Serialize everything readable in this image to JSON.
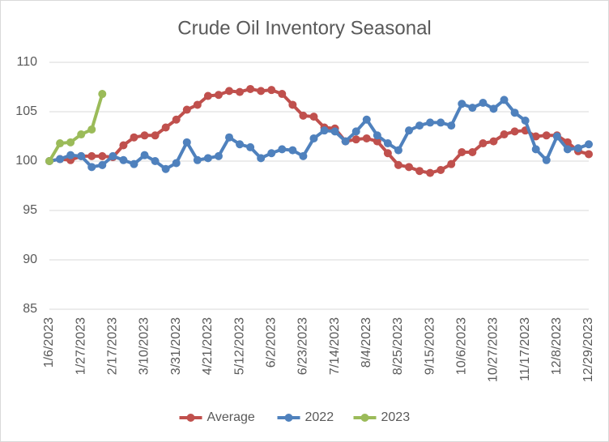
{
  "chart_data": {
    "type": "line",
    "title": "Crude Oil Inventory Seasonal",
    "categories": [
      "1/6/2023",
      null,
      null,
      "1/27/2023",
      null,
      null,
      "2/17/2023",
      null,
      null,
      "3/10/2023",
      null,
      null,
      "3/31/2023",
      null,
      null,
      "4/21/2023",
      null,
      null,
      "5/12/2023",
      null,
      null,
      "6/2/2023",
      null,
      null,
      "6/23/2023",
      null,
      null,
      "7/14/2023",
      null,
      null,
      "8/4/2023",
      null,
      null,
      "8/25/2023",
      null,
      null,
      "9/15/2023",
      null,
      null,
      "10/6/2023",
      null,
      null,
      "10/27/2023",
      null,
      null,
      "11/17/2023",
      null,
      null,
      "12/8/2023",
      null,
      null,
      "12/29/2023"
    ],
    "series": [
      {
        "name": "Average",
        "color": "#c0504d",
        "values": [
          100.0,
          100.2,
          100.1,
          100.5,
          100.5,
          100.5,
          100.4,
          101.6,
          102.4,
          102.6,
          102.6,
          103.4,
          104.2,
          105.2,
          105.7,
          106.6,
          106.7,
          107.1,
          107.0,
          107.3,
          107.1,
          107.2,
          106.8,
          105.7,
          104.6,
          104.5,
          103.4,
          103.3,
          102.0,
          102.2,
          102.3,
          102.0,
          100.8,
          99.6,
          99.4,
          99.0,
          98.8,
          99.1,
          99.7,
          100.9,
          100.9,
          101.8,
          102.0,
          102.7,
          103.0,
          103.1,
          102.5,
          102.6,
          102.6,
          101.9,
          101.0,
          100.7
        ]
      },
      {
        "name": "2022",
        "color": "#4f81bd",
        "values": [
          100.0,
          100.2,
          100.6,
          100.5,
          99.4,
          99.6,
          100.5,
          100.1,
          99.7,
          100.6,
          100.0,
          99.2,
          99.8,
          101.9,
          100.1,
          100.3,
          100.5,
          102.4,
          101.7,
          101.4,
          100.3,
          100.8,
          101.2,
          101.1,
          100.5,
          102.3,
          103.1,
          103.0,
          102.0,
          103.0,
          104.2,
          102.6,
          101.8,
          101.1,
          103.1,
          103.6,
          103.9,
          103.9,
          103.6,
          105.8,
          105.4,
          105.9,
          105.3,
          106.2,
          104.9,
          104.1,
          101.2,
          100.1,
          102.5,
          101.2,
          101.3,
          101.7
        ]
      },
      {
        "name": "2023",
        "color": "#9bbb59",
        "values": [
          100.0,
          101.8,
          101.9,
          102.7,
          103.2,
          106.8,
          null,
          null,
          null,
          null,
          null,
          null,
          null,
          null,
          null,
          null,
          null,
          null,
          null,
          null,
          null,
          null,
          null,
          null,
          null,
          null,
          null,
          null,
          null,
          null,
          null,
          null,
          null,
          null,
          null,
          null,
          null,
          null,
          null,
          null,
          null,
          null,
          null,
          null,
          null,
          null,
          null,
          null,
          null,
          null,
          null,
          null
        ]
      }
    ],
    "ylim": [
      85,
      110
    ],
    "yticks": [
      85,
      90,
      95,
      100,
      105,
      110
    ],
    "grid": true,
    "legend": "bottom"
  }
}
